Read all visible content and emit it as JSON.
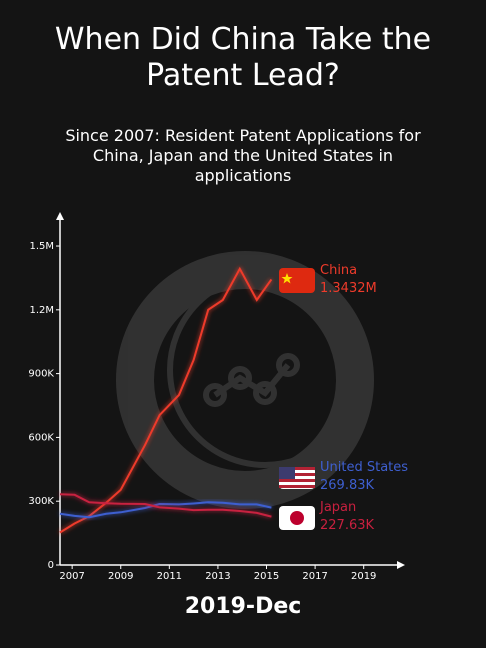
{
  "chart_data": {
    "type": "line",
    "title": "When Did China Take the Patent Lead?",
    "subtitle": "Since 2007: Resident Patent Applications for China, Japan and the United States in applications",
    "annotation": "2019-Dec",
    "x": [
      2006.5,
      2007.1,
      2007.7,
      2008.4,
      2009.0,
      2010.0,
      2010.6,
      2011.4,
      2012.0,
      2012.6,
      2013.2,
      2013.9,
      2014.6,
      2015.2
    ],
    "xlim": [
      2006.5,
      2020.7
    ],
    "xticks": [
      2007,
      2009,
      2011,
      2013,
      2015,
      2017,
      2019
    ],
    "ylim": [
      0,
      1660000
    ],
    "yticks": [
      0,
      {
        "value": 300000,
        "label": "300K"
      },
      {
        "value": 600000,
        "label": "600K"
      },
      {
        "value": 900000,
        "label": "900K"
      },
      {
        "value": 1200000,
        "label": "1.2M"
      },
      {
        "value": 1500000,
        "label": "1.5M"
      }
    ],
    "series": [
      {
        "name": "China",
        "color": "#ee3b2b",
        "values": [
          153000,
          195000,
          230000,
          293000,
          353000,
          564000,
          705000,
          800000,
          964000,
          1200000,
          1246000,
          1393000,
          1246000,
          1343200
        ],
        "value_labels": [
          null,
          null,
          null,
          null,
          null,
          null,
          null,
          null,
          null,
          null,
          null,
          null,
          null,
          "1.3432M"
        ]
      },
      {
        "name": "United States",
        "color": "#3e5fd0",
        "values": [
          241000,
          231000,
          225000,
          241000,
          248000,
          268000,
          287000,
          285000,
          289000,
          295000,
          293000,
          285000,
          285000,
          269830
        ],
        "value_labels": [
          null,
          null,
          null,
          null,
          null,
          null,
          null,
          null,
          null,
          null,
          null,
          null,
          null,
          "269.83K"
        ]
      },
      {
        "name": "Japan",
        "color": "#c8203f",
        "values": [
          333000,
          330000,
          295000,
          290000,
          288000,
          287000,
          271000,
          265000,
          258000,
          260000,
          260000,
          254000,
          245000,
          227630
        ],
        "value_labels": [
          null,
          null,
          null,
          null,
          null,
          null,
          null,
          null,
          null,
          null,
          null,
          null,
          null,
          "227.63K"
        ]
      }
    ]
  }
}
